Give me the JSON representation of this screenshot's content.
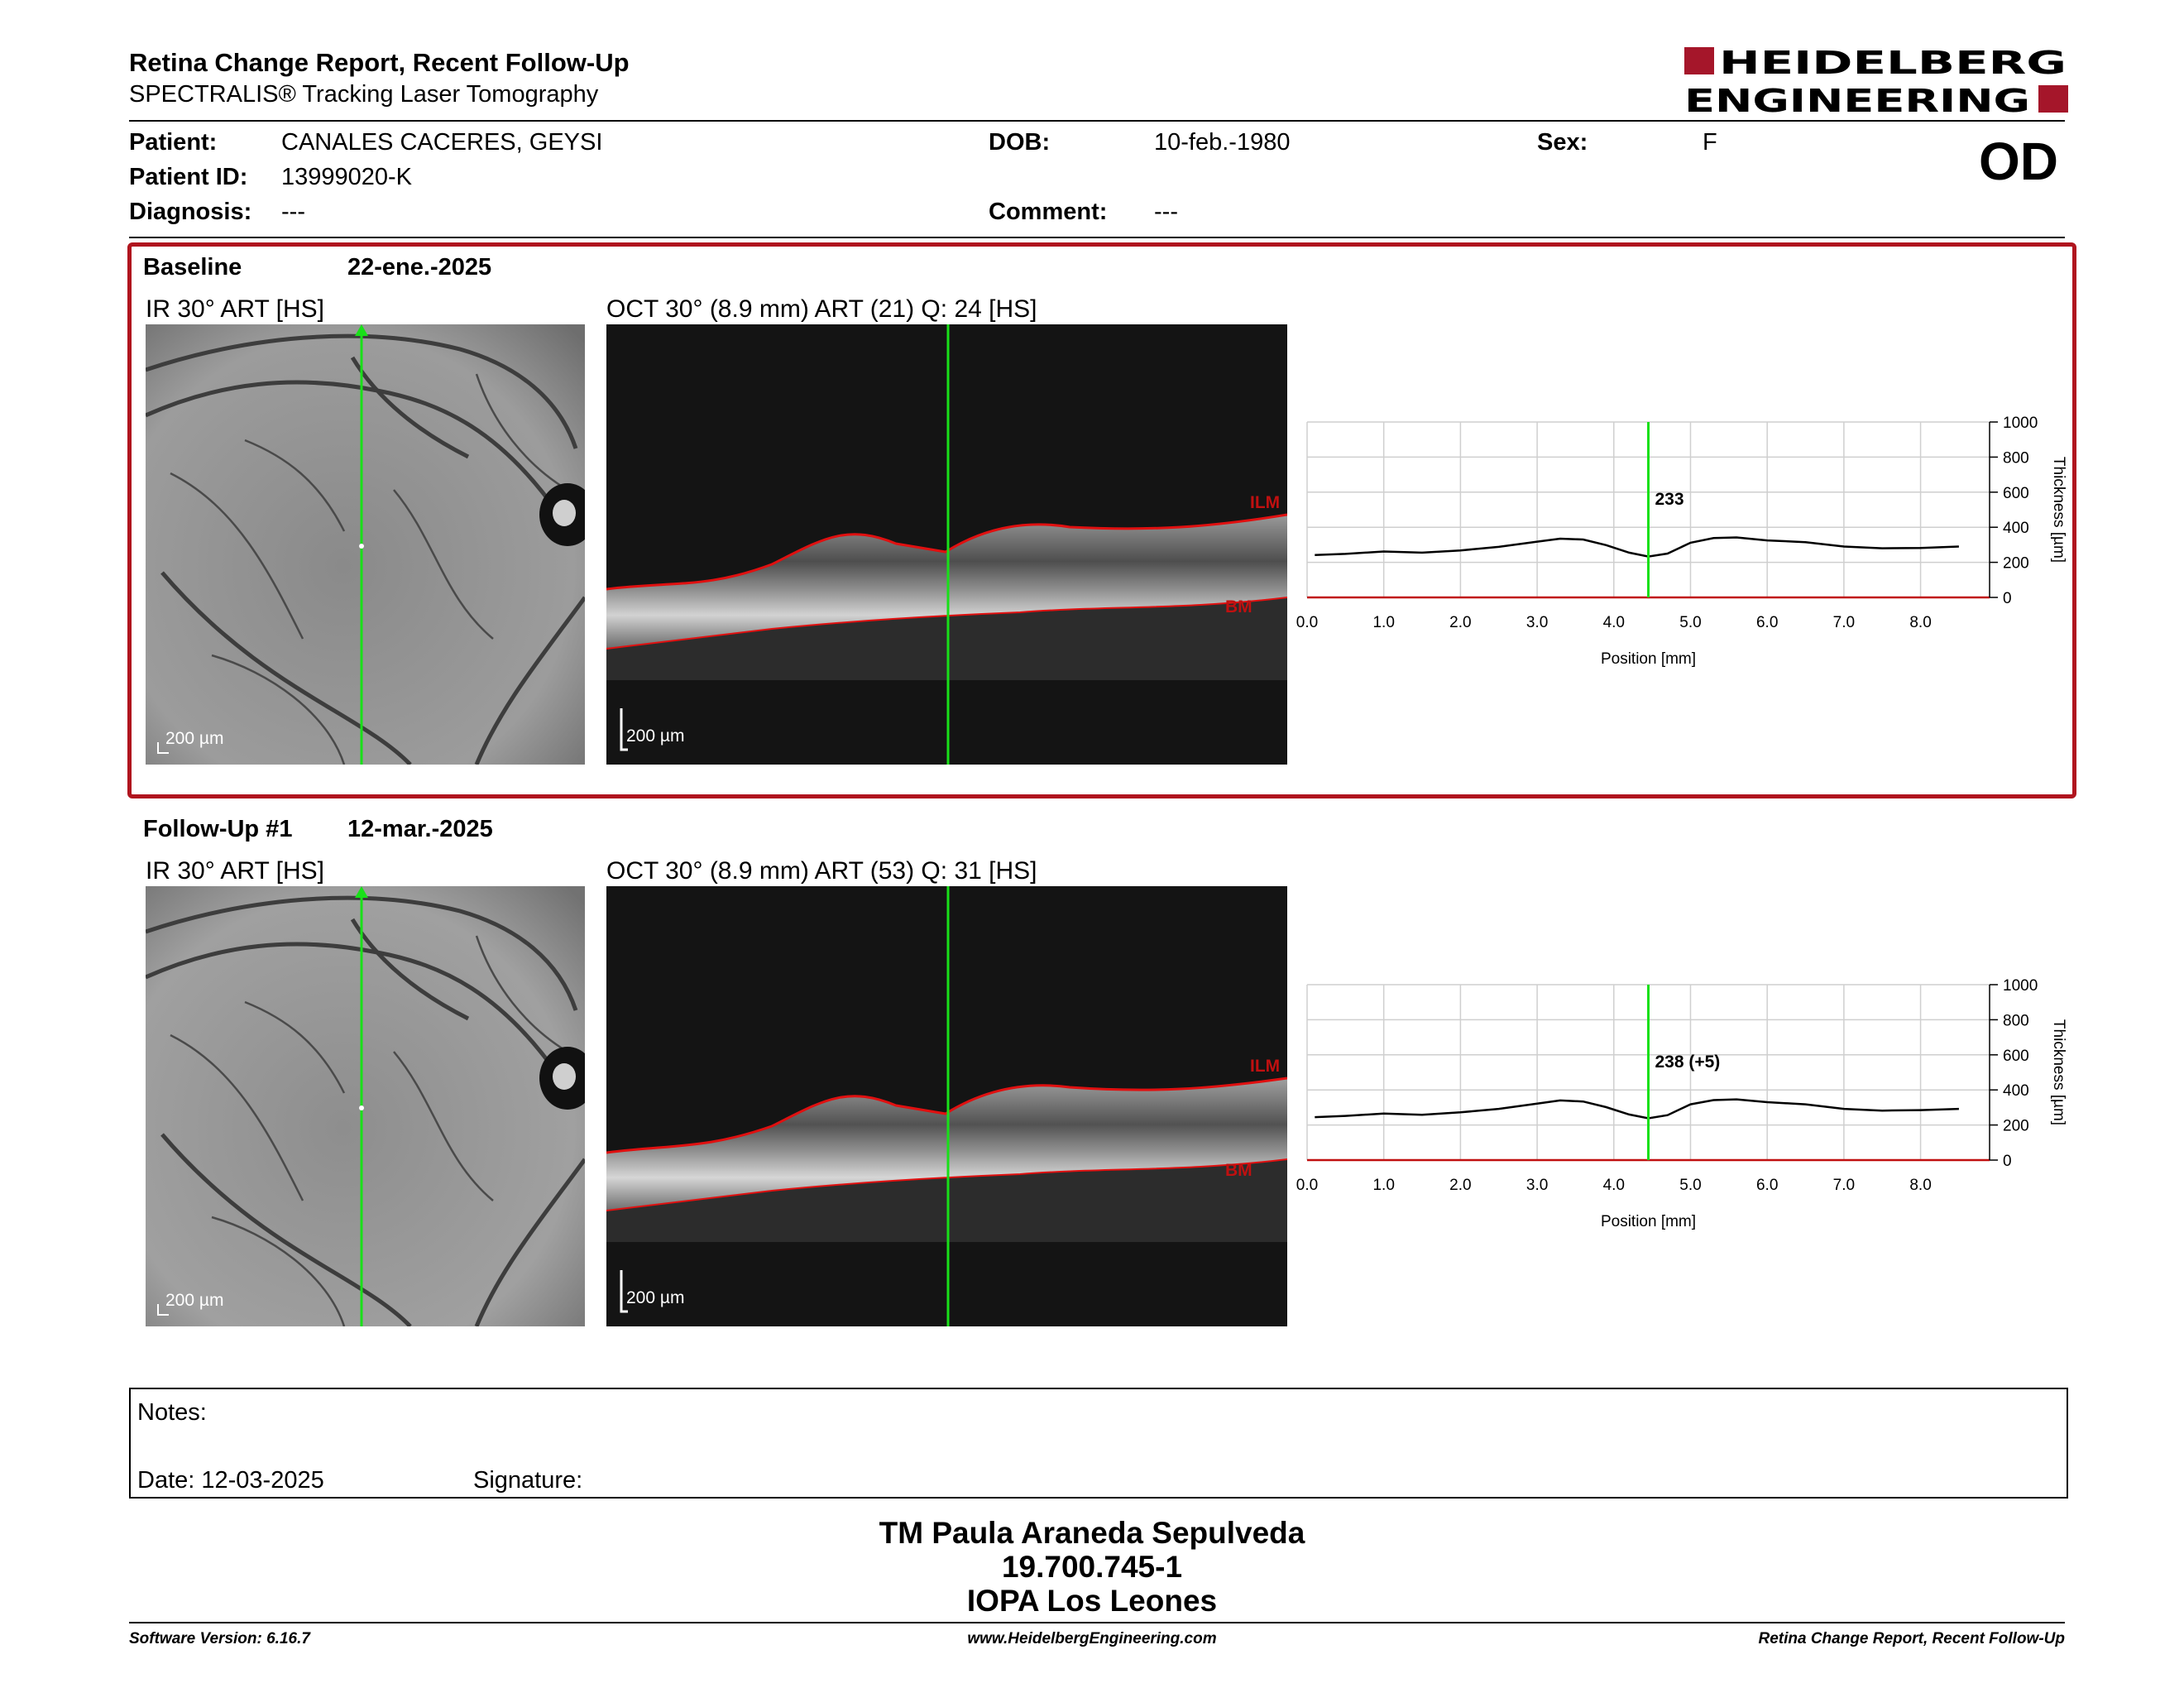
{
  "header": {
    "title": "Retina Change Report, Recent Follow-Up",
    "subtitle": "SPECTRALIS® Tracking Laser Tomography",
    "logo_line1": "HEIDELBERG",
    "logo_line2": "ENGINEERING",
    "eye": "OD"
  },
  "patient": {
    "patient_label": "Patient:",
    "patient_value": "CANALES CACERES, GEYSI",
    "id_label": "Patient ID:",
    "id_value": "13999020-K",
    "diagnosis_label": "Diagnosis:",
    "diagnosis_value": "---",
    "dob_label": "DOB:",
    "dob_value": "10-feb.-1980",
    "comment_label": "Comment:",
    "comment_value": "---",
    "sex_label": "Sex:",
    "sex_value": "F"
  },
  "baseline": {
    "label": "Baseline",
    "date": "22-ene.-2025",
    "ir_label": "IR 30° ART [HS]",
    "oct_label": "OCT 30° (8.9 mm) ART (21) Q: 24 [HS]",
    "scale_ir": "200 µm",
    "scale_oct": "200 µm",
    "ilm": "ILM",
    "bm": "BM",
    "marker_label": "233"
  },
  "followup": {
    "label": "Follow-Up #1",
    "date": "12-mar.-2025",
    "ir_label": "IR 30° ART [HS]",
    "oct_label": "OCT 30° (8.9 mm) ART (53) Q: 31 [HS]",
    "scale_ir": "200 µm",
    "scale_oct": "200 µm",
    "ilm": "ILM",
    "bm": "BM",
    "marker_label": "238 (+5)"
  },
  "chart_data": [
    {
      "type": "line",
      "xlabel": "Position [mm]",
      "ylabel": "Thickness [µm]",
      "xlim": [
        0,
        8.9
      ],
      "ylim": [
        0,
        1000
      ],
      "x_ticks": [
        "0.0",
        "1.0",
        "2.0",
        "3.0",
        "4.0",
        "5.0",
        "6.0",
        "7.0",
        "8.0"
      ],
      "y_ticks": [
        "0",
        "200",
        "400",
        "600",
        "800",
        "1000"
      ],
      "grid": true,
      "marker_x": 4.45,
      "marker_label": "233",
      "x": [
        0.1,
        0.5,
        1.0,
        1.5,
        2.0,
        2.5,
        3.0,
        3.3,
        3.6,
        3.9,
        4.2,
        4.45,
        4.7,
        5.0,
        5.3,
        5.6,
        6.0,
        6.5,
        7.0,
        7.5,
        8.0,
        8.5
      ],
      "y": [
        242,
        248,
        262,
        255,
        268,
        288,
        318,
        335,
        330,
        298,
        255,
        233,
        250,
        312,
        338,
        342,
        325,
        315,
        290,
        280,
        282,
        290
      ]
    },
    {
      "type": "line",
      "xlabel": "Position [mm]",
      "ylabel": "Thickness [µm]",
      "xlim": [
        0,
        8.9
      ],
      "ylim": [
        0,
        1000
      ],
      "x_ticks": [
        "0.0",
        "1.0",
        "2.0",
        "3.0",
        "4.0",
        "5.0",
        "6.0",
        "7.0",
        "8.0"
      ],
      "y_ticks": [
        "0",
        "200",
        "400",
        "600",
        "800",
        "1000"
      ],
      "grid": true,
      "marker_x": 4.45,
      "marker_label": "238 (+5)",
      "x": [
        0.1,
        0.5,
        1.0,
        1.5,
        2.0,
        2.5,
        3.0,
        3.3,
        3.6,
        3.9,
        4.2,
        4.45,
        4.7,
        5.0,
        5.3,
        5.6,
        6.0,
        6.5,
        7.0,
        7.5,
        8.0,
        8.5
      ],
      "y": [
        245,
        252,
        265,
        258,
        272,
        292,
        322,
        340,
        334,
        302,
        260,
        238,
        256,
        318,
        342,
        346,
        330,
        318,
        292,
        282,
        285,
        292
      ]
    }
  ],
  "notes": {
    "notes_label": "Notes:",
    "date_label": "Date: 12-03-2025",
    "signature_label": "Signature:"
  },
  "signoff": {
    "name": "TM Paula Araneda Sepulveda",
    "rut": "19.700.745-1",
    "org": "IOPA Los Leones"
  },
  "footer": {
    "version": "Software Version: 6.16.7",
    "url": "www.HeidelbergEngineering.com",
    "report": "Retina Change Report, Recent Follow-Up"
  }
}
